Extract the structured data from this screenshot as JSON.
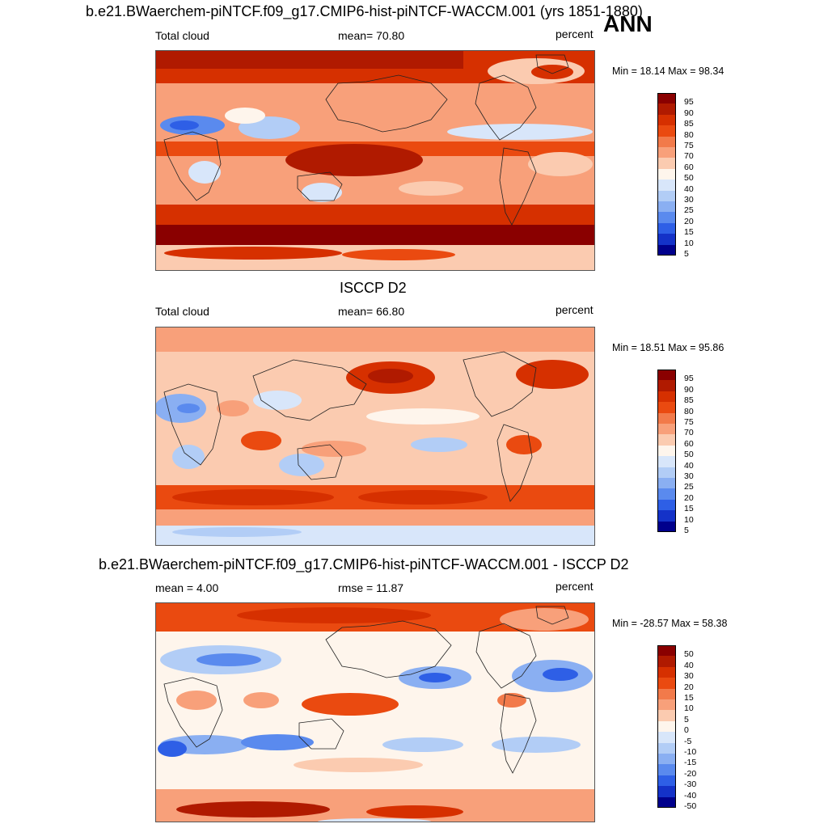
{
  "page": {
    "season": "ANN"
  },
  "chart_data": [
    {
      "type": "heatmap",
      "title": "b.e21.BWaerchem-piNTCF.f09_g17.CMIP6-hist-piNTCF-WACCM.001 (yrs 1851-1880)",
      "variable": "Total cloud",
      "stat_label": "mean=  70.80",
      "units": "percent",
      "mean": 70.8,
      "min": 18.14,
      "max": 98.34,
      "minmax_text": "Min =  18.14 Max =  98.34",
      "levels": [
        "95",
        "90",
        "85",
        "80",
        "75",
        "70",
        "60",
        "50",
        "40",
        "30",
        "25",
        "20",
        "15",
        "10",
        "5"
      ],
      "colors": [
        "#8a0000",
        "#b01a00",
        "#d63000",
        "#ea4a10",
        "#f27a4a",
        "#f8a07a",
        "#fbcbb0",
        "#fef5ec",
        "#d8e6fa",
        "#b2cdf6",
        "#8aaff2",
        "#5a8aee",
        "#2e5fe6",
        "#1432c8",
        "#00008c"
      ]
    },
    {
      "type": "heatmap",
      "title": "ISCCP D2",
      "variable": "Total cloud",
      "stat_label": "mean=  66.80",
      "units": "percent",
      "mean": 66.8,
      "min": 18.51,
      "max": 95.86,
      "minmax_text": "Min =  18.51 Max =  95.86",
      "levels": [
        "95",
        "90",
        "85",
        "80",
        "75",
        "70",
        "60",
        "50",
        "40",
        "30",
        "25",
        "20",
        "15",
        "10",
        "5"
      ],
      "colors": [
        "#8a0000",
        "#b01a00",
        "#d63000",
        "#ea4a10",
        "#f27a4a",
        "#f8a07a",
        "#fbcbb0",
        "#fef5ec",
        "#d8e6fa",
        "#b2cdf6",
        "#8aaff2",
        "#5a8aee",
        "#2e5fe6",
        "#1432c8",
        "#00008c"
      ]
    },
    {
      "type": "heatmap",
      "title": "b.e21.BWaerchem-piNTCF.f09_g17.CMIP6-hist-piNTCF-WACCM.001 - ISCCP D2",
      "stat_label": "mean =   4.00",
      "rmse_label": "rmse =  11.87",
      "units": "percent",
      "mean": 4.0,
      "rmse": 11.87,
      "min": -28.57,
      "max": 58.38,
      "minmax_text": "Min = -28.57 Max =  58.38",
      "levels": [
        "50",
        "40",
        "30",
        "20",
        "15",
        "10",
        "5",
        "0",
        "-5",
        "-10",
        "-15",
        "-20",
        "-30",
        "-40",
        "-50"
      ],
      "colors": [
        "#8a0000",
        "#b01a00",
        "#d63000",
        "#ea4a10",
        "#f27a4a",
        "#f8a07a",
        "#fbcbb0",
        "#fef5ec",
        "#d8e6fa",
        "#b2cdf6",
        "#8aaff2",
        "#5a8aee",
        "#2e5fe6",
        "#1432c8",
        "#00008c"
      ]
    }
  ]
}
